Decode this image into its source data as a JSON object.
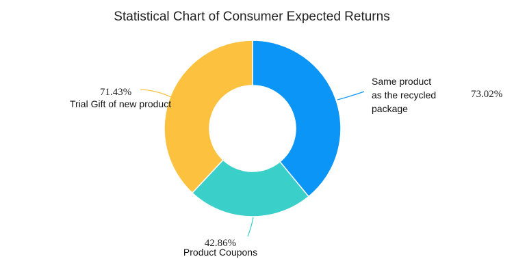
{
  "chart_data": {
    "type": "pie",
    "title": "Statistical Chart of Consumer Expected Returns",
    "hole": true,
    "slices": [
      {
        "name": "Same product as the recycled package",
        "name_lines": [
          "Same product",
          "as the recycled",
          "package"
        ],
        "percent_label": "73.02%",
        "share": 0.3904,
        "color": "#0B95F7"
      },
      {
        "name": "Product Coupons",
        "name_lines": [
          "Product Coupons"
        ],
        "percent_label": "42.86%",
        "share": 0.2292,
        "color": "#3AD0C9"
      },
      {
        "name": "Trial Gift of new product",
        "name_lines": [
          "Trial Gift of new product"
        ],
        "percent_label": "71.43%",
        "share": 0.3804,
        "color": "#FCC13F"
      }
    ]
  }
}
